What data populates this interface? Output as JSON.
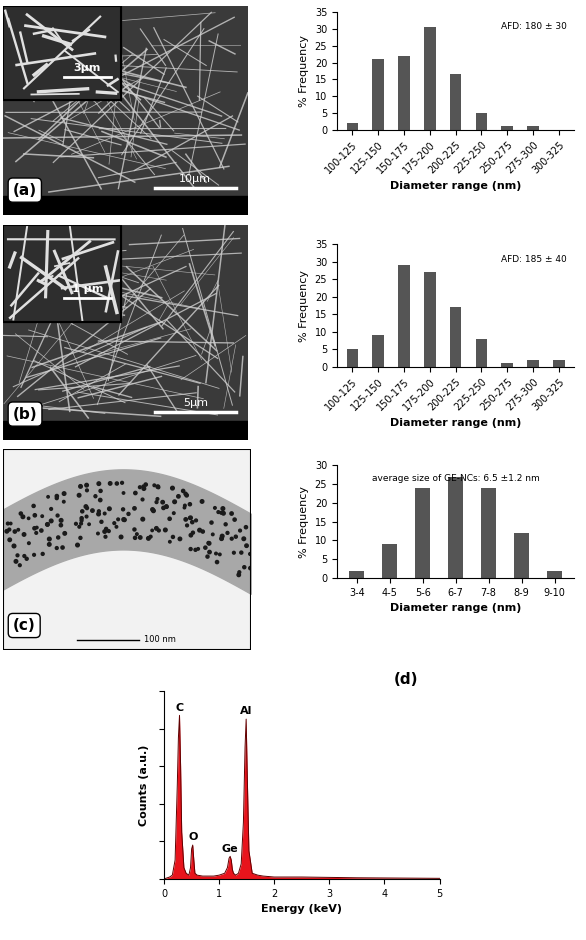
{
  "images": [
    {
      "label": "(a)",
      "scale_bar": "10µm",
      "inset_scale_bar": "3µm"
    },
    {
      "label": "(b)",
      "scale_bar": "5µm",
      "inset_scale_bar": "1 µm"
    },
    {
      "label": "(c)",
      "scale_bar": "100 nm"
    }
  ],
  "chart_data": [
    {
      "type": "bar",
      "annotation": "AFD: 180 ± 30",
      "categories": [
        "100-125",
        "125-150",
        "150-175",
        "175-200",
        "200-225",
        "225-250",
        "250-275",
        "275-300",
        "300-325"
      ],
      "values": [
        2,
        21,
        22,
        30.5,
        16.5,
        5,
        1,
        1,
        0
      ],
      "color": "#555555",
      "xlabel": "Diameter range (nm)",
      "ylabel": "% Frequency",
      "ylim": [
        0,
        35
      ],
      "yticks": [
        0,
        5,
        10,
        15,
        20,
        25,
        30,
        35
      ]
    },
    {
      "type": "bar",
      "annotation": "AFD: 185 ± 40",
      "categories": [
        "100-125",
        "125-150",
        "150-175",
        "175-200",
        "200-225",
        "225-250",
        "250-275",
        "275-300",
        "300-325"
      ],
      "values": [
        5,
        9,
        29,
        27,
        17,
        8,
        1,
        2,
        2
      ],
      "color": "#555555",
      "xlabel": "Diameter range (nm)",
      "ylabel": "% Frequency",
      "ylim": [
        0,
        35
      ],
      "yticks": [
        0,
        5,
        10,
        15,
        20,
        25,
        30,
        35
      ]
    },
    {
      "type": "bar",
      "annotation": "average size of GE-NCs: 6.5 ±1.2 nm",
      "categories": [
        "3-4",
        "4-5",
        "5-6",
        "6-7",
        "7-8",
        "8-9",
        "9-10"
      ],
      "values": [
        2,
        9,
        24,
        27,
        24,
        12,
        2
      ],
      "color": "#555555",
      "xlabel": "Diameter range (nm)",
      "ylabel": "% Frequency",
      "ylim": [
        0,
        30
      ],
      "yticks": [
        0,
        5,
        10,
        15,
        20,
        25,
        30
      ]
    },
    {
      "type": "area",
      "label": "(d)",
      "x": [
        0,
        0.1,
        0.15,
        0.2,
        0.24,
        0.26,
        0.28,
        0.3,
        0.32,
        0.36,
        0.4,
        0.45,
        0.48,
        0.5,
        0.52,
        0.54,
        0.56,
        0.6,
        0.7,
        0.8,
        0.9,
        1.0,
        1.1,
        1.15,
        1.18,
        1.2,
        1.22,
        1.24,
        1.26,
        1.3,
        1.35,
        1.4,
        1.44,
        1.47,
        1.49,
        1.51,
        1.54,
        1.6,
        1.7,
        1.8,
        2.0,
        2.2,
        2.5,
        3.0,
        3.5,
        4.0,
        4.5,
        5.0
      ],
      "values": [
        0,
        1,
        2,
        10,
        50,
        75,
        87,
        60,
        25,
        6,
        3,
        2,
        6,
        16,
        18,
        10,
        3,
        2,
        1.5,
        1.5,
        1.5,
        2,
        3,
        6,
        11,
        12,
        10,
        5,
        3,
        2,
        3,
        8,
        30,
        70,
        85,
        55,
        15,
        3,
        2,
        1.5,
        1,
        1,
        1,
        0.8,
        0.6,
        0.5,
        0.4,
        0.3
      ],
      "color": "#e8141c",
      "xlabel": "Energy (keV)",
      "ylabel": "Counts (a.u.)",
      "xlim": [
        0,
        5
      ],
      "xticks": [
        0,
        1,
        2,
        3,
        4,
        5
      ],
      "ylim": [
        0,
        100
      ],
      "yticks": [
        0,
        20,
        40,
        60,
        80,
        100
      ],
      "tick_labels": "x",
      "annotations": [
        {
          "text": "C",
          "x": 0.28,
          "y": 87
        },
        {
          "text": "O",
          "x": 0.52,
          "y": 18
        },
        {
          "text": "Ge",
          "x": 1.2,
          "y": 12
        },
        {
          "text": "Al",
          "x": 1.49,
          "y": 85
        }
      ]
    }
  ]
}
